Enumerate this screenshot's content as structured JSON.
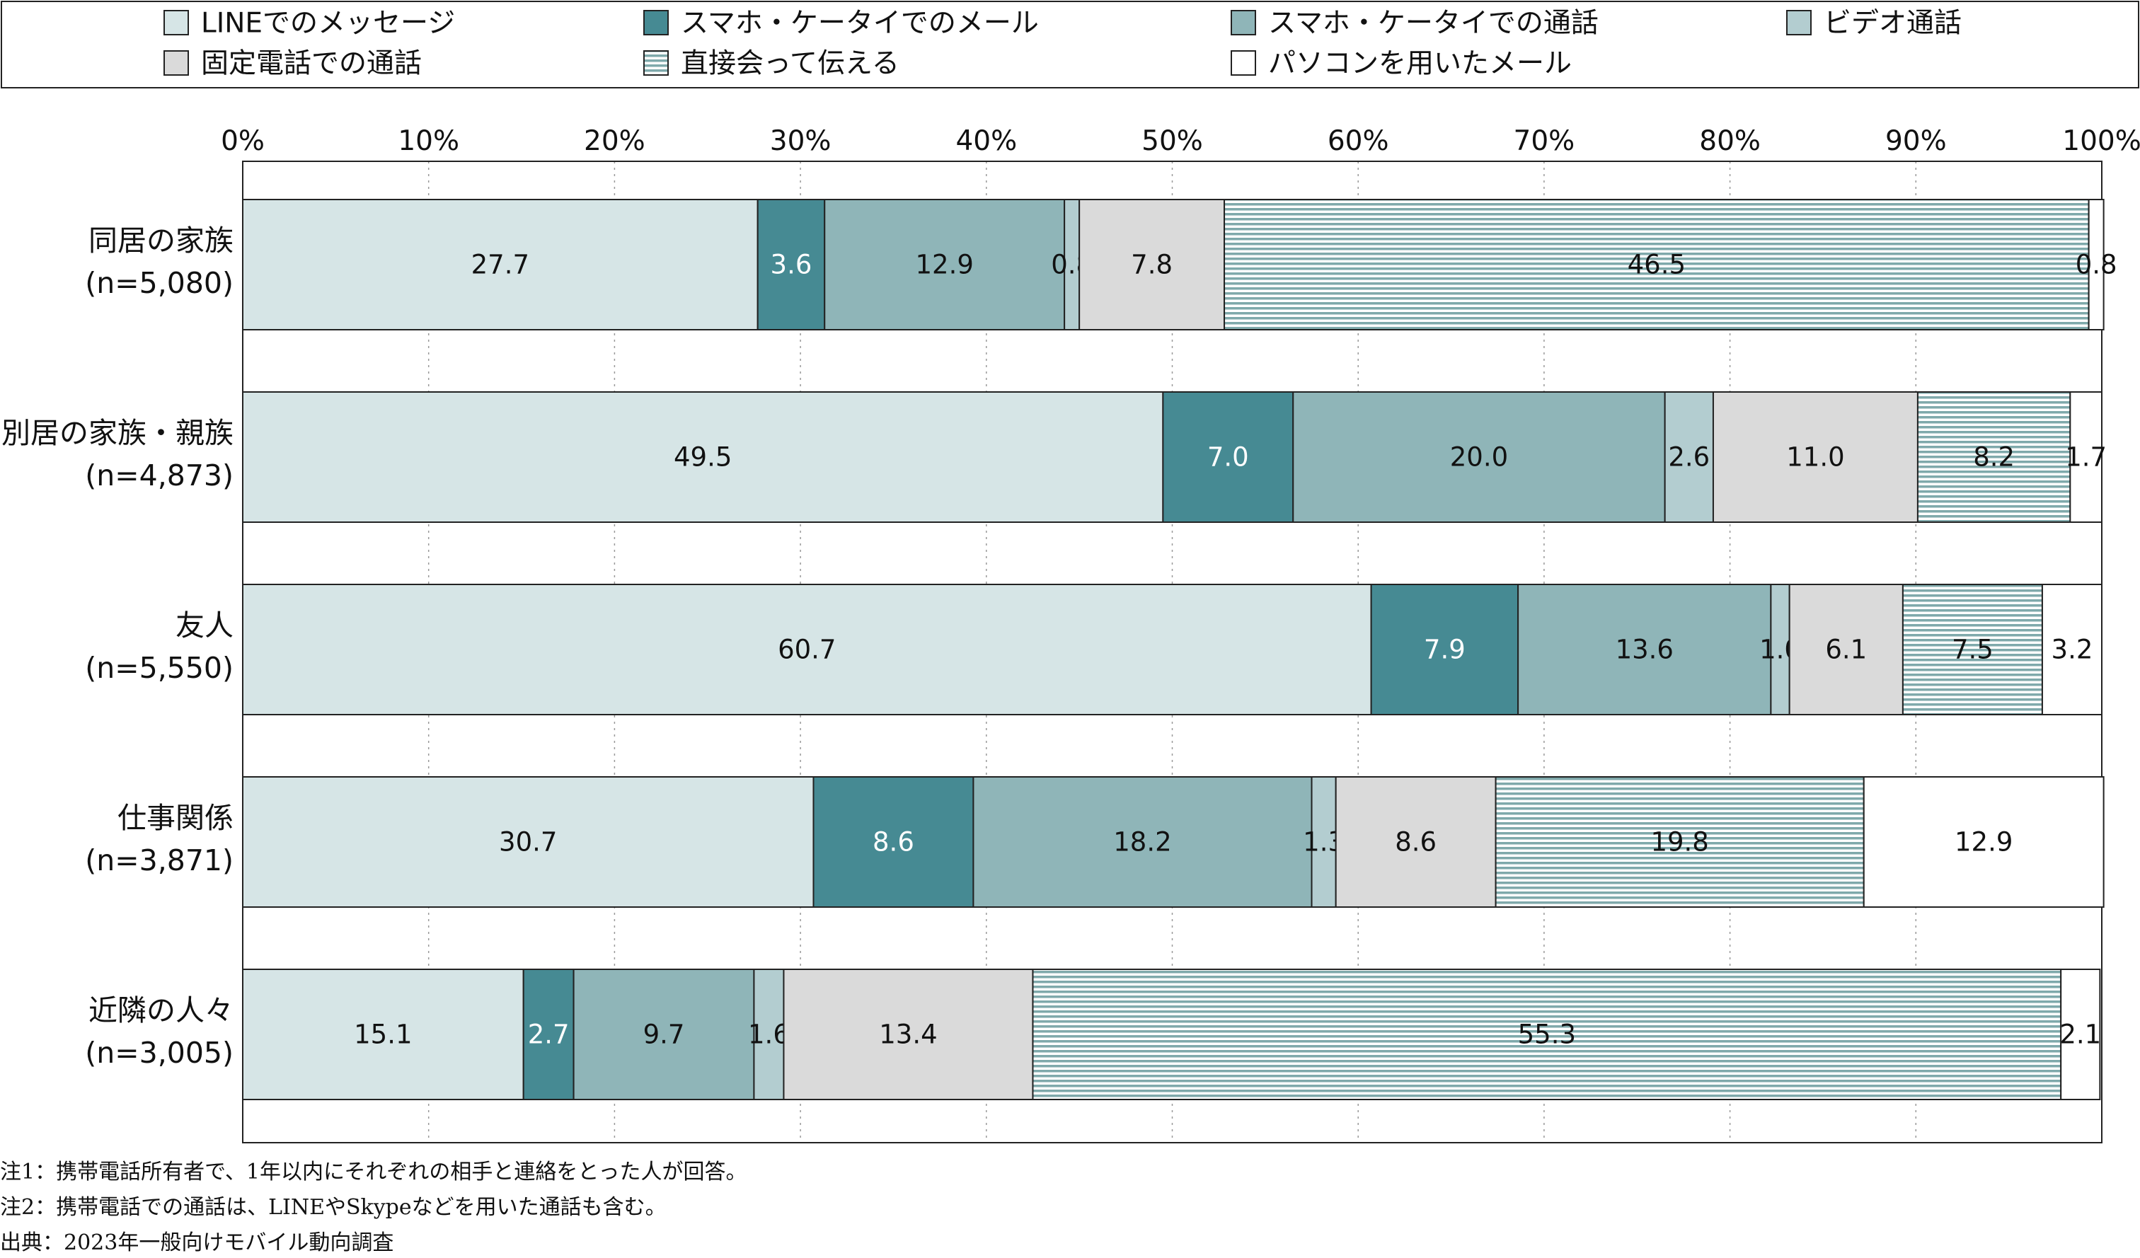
{
  "chart_data": {
    "type": "bar",
    "orientation": "horizontal",
    "stacked": true,
    "percent": true,
    "xlim": [
      0,
      100
    ],
    "xticks": [
      "0%",
      "10%",
      "20%",
      "30%",
      "40%",
      "50%",
      "60%",
      "70%",
      "80%",
      "90%",
      "100%"
    ],
    "grid": "vertical dotted",
    "legend_position": "top",
    "categories": [
      {
        "name": "同居の家族",
        "n": "(n=5,080)"
      },
      {
        "name": "別居の家族・親族",
        "n": "(n=4,873)"
      },
      {
        "name": "友人",
        "n": "(n=5,550)"
      },
      {
        "name": "仕事関係",
        "n": "(n=3,871)"
      },
      {
        "name": "近隣の人々",
        "n": "(n=3,005)"
      }
    ],
    "series": [
      {
        "name": "LINEでのメッセージ",
        "color": "#d6e5e6",
        "pattern": "solid",
        "values": [
          27.7,
          49.5,
          60.7,
          30.7,
          15.1
        ]
      },
      {
        "name": "スマホ・ケータイでのメール",
        "color": "#468a93",
        "pattern": "solid",
        "values": [
          3.6,
          7.0,
          7.9,
          8.6,
          2.7
        ]
      },
      {
        "name": "スマホ・ケータイでの通話",
        "color": "#8fb5b8",
        "pattern": "solid",
        "values": [
          12.9,
          20.0,
          13.6,
          18.2,
          9.7
        ]
      },
      {
        "name": "ビデオ通話",
        "color": "#b3cdd0",
        "pattern": "solid",
        "values": [
          0.8,
          2.6,
          1.0,
          1.3,
          1.6
        ]
      },
      {
        "name": "固定電話での通話",
        "color": "#dadada",
        "pattern": "solid",
        "values": [
          7.8,
          11.0,
          6.1,
          8.6,
          13.4
        ]
      },
      {
        "name": "直接会って伝える",
        "color": "#a9c8c9",
        "pattern": "horizontal-stripes",
        "values": [
          46.5,
          8.2,
          7.5,
          19.8,
          55.3
        ]
      },
      {
        "name": "パソコンを用いたメール",
        "color": "#ffffff",
        "pattern": "solid",
        "values": [
          0.8,
          1.7,
          3.2,
          12.9,
          2.1
        ]
      }
    ]
  },
  "notes": [
    "注1：携帯電話所有者で、1年以内にそれぞれの相手と連絡をとった人が回答。",
    "注2：携帯電話での通話は、LINEやSkypeなどを用いた通話も含む。",
    "出典：2023年一般向けモバイル動向調査"
  ]
}
